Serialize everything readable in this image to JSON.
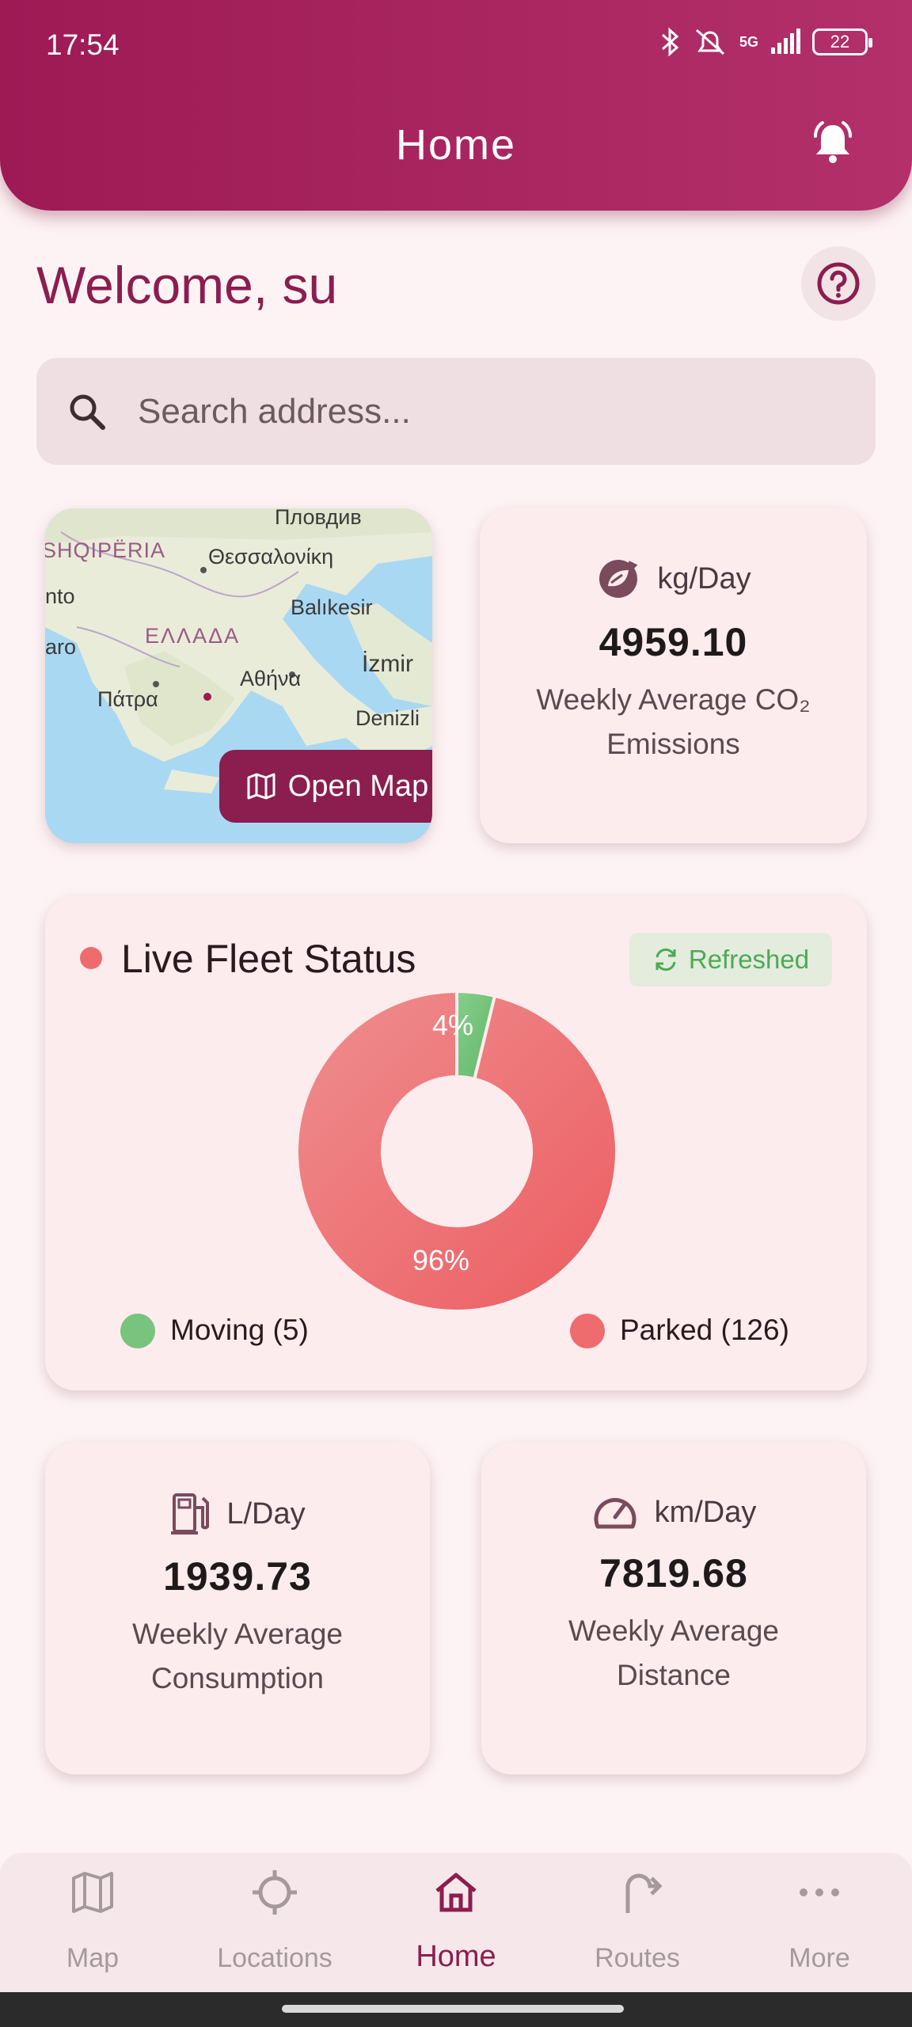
{
  "status_bar": {
    "time": "17:54",
    "icons": [
      "bluetooth-icon",
      "mute-icon",
      "signal-icon"
    ],
    "network": "5G",
    "battery": "22"
  },
  "header": {
    "title": "Home"
  },
  "welcome": {
    "text": "Welcome, su"
  },
  "search": {
    "placeholder": "Search address..."
  },
  "map_card": {
    "labels": [
      "Пловдив",
      "SHQIPËRIA",
      "Θεσσαλονίκη",
      "nto",
      "Balıkesir",
      "ΕΛΛΑΔΑ",
      "aro",
      "Αθήνα",
      "İzmir",
      "Πάτρα",
      "Denizli"
    ],
    "button_label": "Open Map"
  },
  "co2": {
    "unit": "kg/Day",
    "value": "4959.10",
    "label_line1": "Weekly Average CO₂",
    "label_line2": "Emissions"
  },
  "fleet": {
    "title": "Live Fleet Status",
    "refresh_label": "Refreshed",
    "legend_moving": "Moving (5)",
    "legend_parked": "Parked (126)"
  },
  "chart_data": {
    "type": "pie",
    "categories": [
      "Moving",
      "Parked"
    ],
    "values": [
      5,
      126
    ],
    "percent_labels": [
      "4%",
      "96%"
    ],
    "colors": [
      "#72c07a",
      "#ee6b6e"
    ]
  },
  "fuel": {
    "unit": "L/Day",
    "value": "1939.73",
    "label_line1": "Weekly Average",
    "label_line2": "Consumption"
  },
  "distance": {
    "unit": "km/Day",
    "value": "7819.68",
    "label_line1": "Weekly Average",
    "label_line2": "Distance"
  },
  "nav": {
    "items": [
      {
        "label": "Map",
        "icon": "map-icon"
      },
      {
        "label": "Locations",
        "icon": "crosshair-icon"
      },
      {
        "label": "Home",
        "icon": "home-icon"
      },
      {
        "label": "Routes",
        "icon": "route-icon"
      },
      {
        "label": "More",
        "icon": "more-icon"
      }
    ],
    "active": "Home"
  },
  "colors": {
    "brand": "#8b1d4f",
    "header": "#a8255f",
    "moving": "#72c07a",
    "parked": "#ee6b6e",
    "refreshed_text": "#4caa54"
  }
}
